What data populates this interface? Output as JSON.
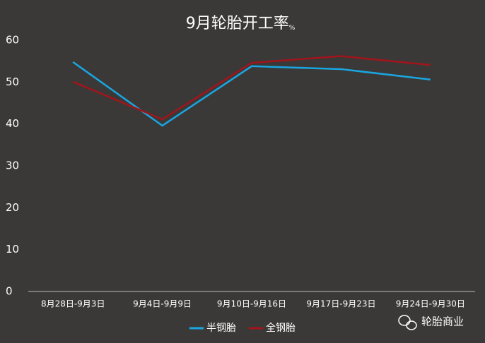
{
  "chart_data": {
    "type": "line",
    "title": "9月轮胎开工率",
    "title_unit": "%",
    "categories": [
      "8月28日-9月3日",
      "9月4日-9月9日",
      "9月10日-9月16日",
      "9月17日-9月23日",
      "9月24日-9月30日"
    ],
    "series": [
      {
        "name": "半钢胎",
        "color": "#1aa6e0",
        "values": [
          54.8,
          39.6,
          53.8,
          53.1,
          50.6
        ]
      },
      {
        "name": "全钢胎",
        "color": "#a3141b",
        "values": [
          50.1,
          41.1,
          54.6,
          56.2,
          54.1
        ]
      }
    ],
    "ylim": [
      0,
      60
    ],
    "yticks": [
      0,
      10,
      20,
      30,
      40,
      50,
      60
    ],
    "grid": false,
    "legend": "bottom",
    "watermark": "轮胎商业"
  }
}
